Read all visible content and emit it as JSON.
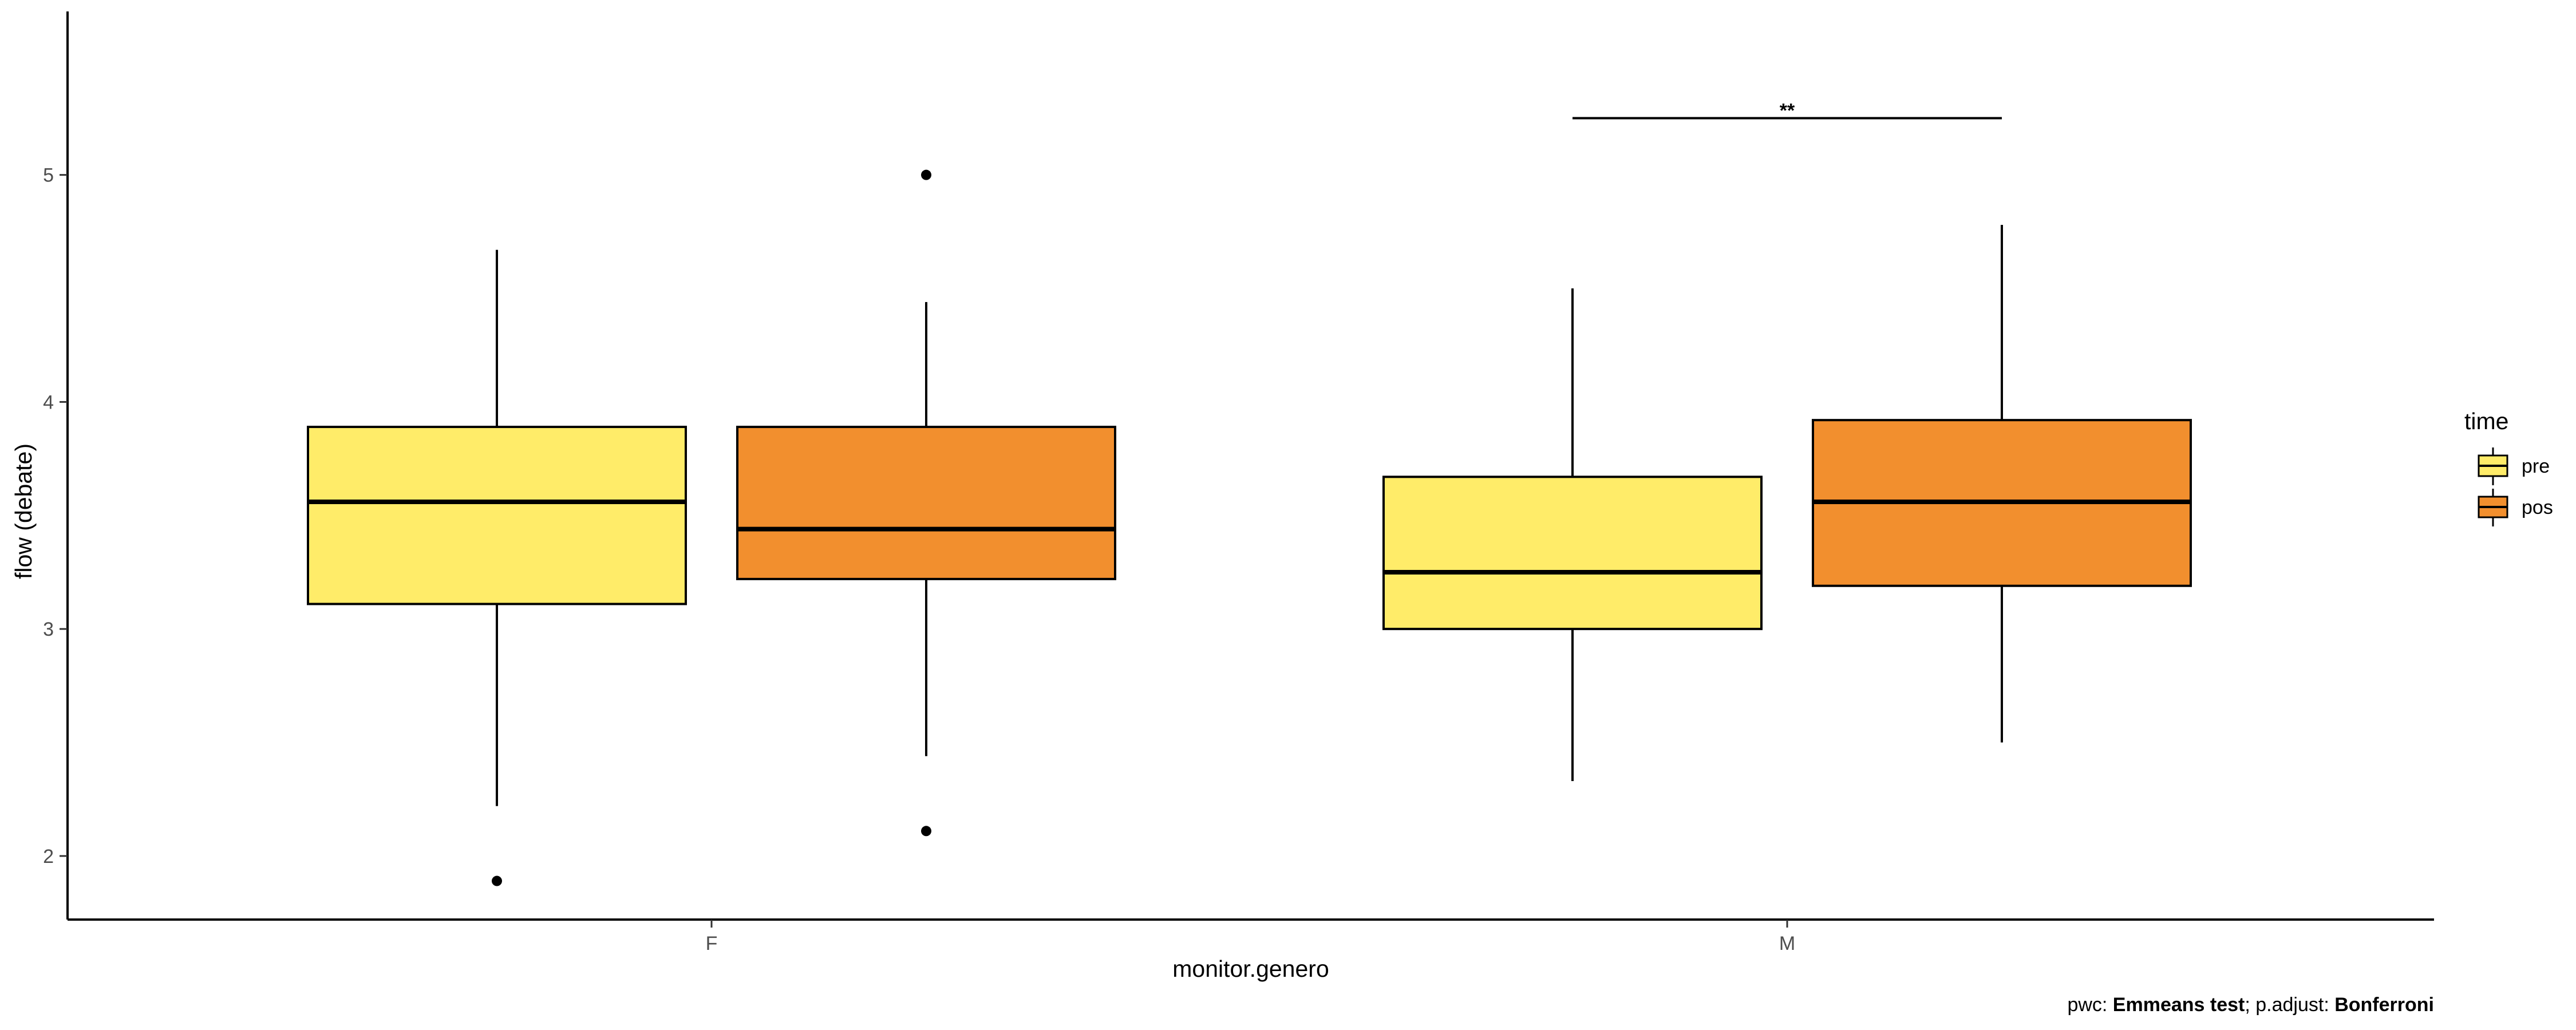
{
  "chart_data": {
    "type": "boxplot",
    "xlabel": "monitor.genero",
    "ylabel": "flow (debate)",
    "categories": [
      "F",
      "M"
    ],
    "ylim": [
      1.72,
      5.72
    ],
    "yticks": [
      2,
      3,
      4,
      5
    ],
    "grid": false,
    "legend": {
      "title": "time",
      "position": "right",
      "entries": [
        {
          "name": "pre",
          "color": "#FFEC69"
        },
        {
          "name": "pos",
          "color": "#F28F2E"
        }
      ]
    },
    "boxes": [
      {
        "category": "F",
        "group": "pre",
        "min": 2.22,
        "q1": 3.11,
        "median": 3.56,
        "q3": 3.89,
        "max": 4.67,
        "outliers": [
          1.89
        ]
      },
      {
        "category": "F",
        "group": "pos",
        "min": 2.44,
        "q1": 3.22,
        "median": 3.44,
        "q3": 3.89,
        "max": 4.44,
        "outliers": [
          5.0,
          2.11
        ]
      },
      {
        "category": "M",
        "group": "pre",
        "min": 2.33,
        "q1": 3.0,
        "median": 3.25,
        "q3": 3.67,
        "max": 4.5,
        "outliers": []
      },
      {
        "category": "M",
        "group": "pos",
        "min": 2.5,
        "q1": 3.19,
        "median": 3.56,
        "q3": 3.92,
        "max": 4.78,
        "outliers": []
      }
    ],
    "annotations": [
      {
        "category": "M",
        "from": "pre",
        "to": "pos",
        "y": 5.25,
        "label": "**"
      }
    ],
    "caption": {
      "prefix": "pwc: ",
      "method": "Emmeans test",
      "middle": "; p.adjust: ",
      "adjust": "Bonferroni"
    }
  }
}
